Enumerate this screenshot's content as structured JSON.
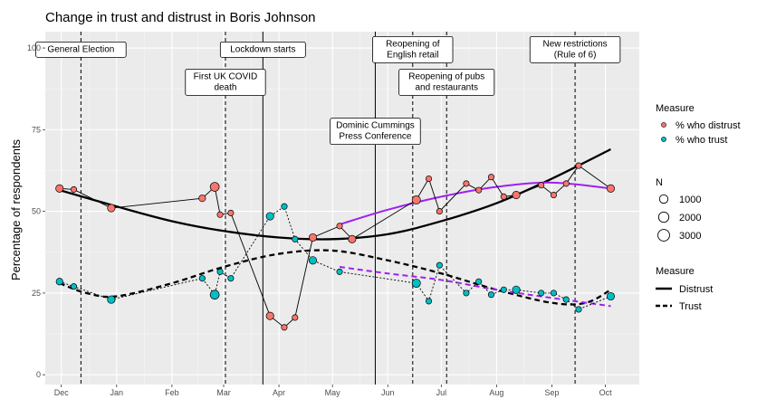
{
  "chart_data": {
    "type": "scatter",
    "title": "Change in trust and distrust in Boris Johnson",
    "xlabel": "",
    "ylabel": "Percentage of respondents",
    "ylim": [
      -3,
      105
    ],
    "xlim": [
      "2019-11-22",
      "2020-10-20"
    ],
    "x_ticks": [
      {
        "date": "2019-12-01",
        "label": "Dec"
      },
      {
        "date": "2020-01-01",
        "label": "Jan"
      },
      {
        "date": "2020-02-01",
        "label": "Feb"
      },
      {
        "date": "2020-03-01",
        "label": "Mar"
      },
      {
        "date": "2020-04-01",
        "label": "Apr"
      },
      {
        "date": "2020-05-01",
        "label": "May"
      },
      {
        "date": "2020-06-01",
        "label": "Jun"
      },
      {
        "date": "2020-07-01",
        "label": "Jul"
      },
      {
        "date": "2020-08-01",
        "label": "Aug"
      },
      {
        "date": "2020-09-01",
        "label": "Sep"
      },
      {
        "date": "2020-10-01",
        "label": "Oct"
      }
    ],
    "y_ticks": [
      0,
      25,
      50,
      75,
      100
    ],
    "grid": true,
    "events": [
      {
        "date": "2019-12-12",
        "label": [
          "General Election"
        ],
        "style": "dashed",
        "label_y": 99.5
      },
      {
        "date": "2020-03-02",
        "label": [
          "First UK COVID",
          "death"
        ],
        "style": "dashed",
        "label_y": 89.5
      },
      {
        "date": "2020-03-23",
        "label": [
          "Lockdown starts"
        ],
        "style": "solid",
        "label_y": 99.5
      },
      {
        "date": "2020-05-25",
        "label": [
          "Dominic Cummings",
          "Press Conference"
        ],
        "style": "solid",
        "label_y": 74.5
      },
      {
        "date": "2020-06-15",
        "label": [
          "Reopening of",
          "English retail"
        ],
        "style": "dashed",
        "label_y": 99.5
      },
      {
        "date": "2020-07-04",
        "label": [
          "Reopening of pubs",
          "and restaurants"
        ],
        "style": "dashed",
        "label_y": 89.5
      },
      {
        "date": "2020-09-14",
        "label": [
          "New restrictions",
          "(Rule of 6)"
        ],
        "style": "dashed",
        "label_y": 99.5
      }
    ],
    "series": [
      {
        "name": "% who distrust",
        "color": "#F8766D",
        "points": [
          {
            "date": "2019-11-30",
            "value": 57,
            "n": 2000
          },
          {
            "date": "2019-12-08",
            "value": 56.7,
            "n": 1000
          },
          {
            "date": "2019-12-29",
            "value": 51,
            "n": 2000
          },
          {
            "date": "2020-02-18",
            "value": 54,
            "n": 1500
          },
          {
            "date": "2020-02-25",
            "value": 57.5,
            "n": 3000
          },
          {
            "date": "2020-02-28",
            "value": 49,
            "n": 1000
          },
          {
            "date": "2020-03-05",
            "value": 49.5,
            "n": 1000
          },
          {
            "date": "2020-03-27",
            "value": 18,
            "n": 2000
          },
          {
            "date": "2020-04-04",
            "value": 14.5,
            "n": 1000
          },
          {
            "date": "2020-04-10",
            "value": 17.5,
            "n": 1000
          },
          {
            "date": "2020-04-20",
            "value": 42,
            "n": 2000
          },
          {
            "date": "2020-05-05",
            "value": 45.5,
            "n": 1000
          },
          {
            "date": "2020-05-12",
            "value": 41.5,
            "n": 2000
          },
          {
            "date": "2020-06-17",
            "value": 53.5,
            "n": 2500
          },
          {
            "date": "2020-06-24",
            "value": 60,
            "n": 1000
          },
          {
            "date": "2020-06-30",
            "value": 50,
            "n": 1000
          },
          {
            "date": "2020-07-15",
            "value": 58.5,
            "n": 1000
          },
          {
            "date": "2020-07-22",
            "value": 56.5,
            "n": 1000
          },
          {
            "date": "2020-07-29",
            "value": 60.5,
            "n": 1000
          },
          {
            "date": "2020-08-05",
            "value": 54.5,
            "n": 1000
          },
          {
            "date": "2020-08-12",
            "value": 55,
            "n": 2000
          },
          {
            "date": "2020-08-26",
            "value": 58,
            "n": 1000
          },
          {
            "date": "2020-09-02",
            "value": 55,
            "n": 1000
          },
          {
            "date": "2020-09-09",
            "value": 58.5,
            "n": 1000
          },
          {
            "date": "2020-09-16",
            "value": 64,
            "n": 1000
          },
          {
            "date": "2020-10-04",
            "value": 57,
            "n": 2000
          }
        ]
      },
      {
        "name": "% who trust",
        "color": "#00BFC4",
        "points": [
          {
            "date": "2019-11-30",
            "value": 28.5,
            "n": 1500
          },
          {
            "date": "2019-12-08",
            "value": 27,
            "n": 1000
          },
          {
            "date": "2019-12-29",
            "value": 23,
            "n": 2000
          },
          {
            "date": "2020-02-18",
            "value": 29.5,
            "n": 1000
          },
          {
            "date": "2020-02-25",
            "value": 24.5,
            "n": 3000
          },
          {
            "date": "2020-02-28",
            "value": 31.5,
            "n": 1000
          },
          {
            "date": "2020-03-05",
            "value": 29.5,
            "n": 1000
          },
          {
            "date": "2020-03-27",
            "value": 48.5,
            "n": 2000
          },
          {
            "date": "2020-04-04",
            "value": 51.5,
            "n": 1000
          },
          {
            "date": "2020-04-10",
            "value": 41.5,
            "n": 1000
          },
          {
            "date": "2020-04-20",
            "value": 35,
            "n": 2000
          },
          {
            "date": "2020-05-05",
            "value": 31.5,
            "n": 1000
          },
          {
            "date": "2020-06-17",
            "value": 28,
            "n": 2500
          },
          {
            "date": "2020-06-24",
            "value": 22.5,
            "n": 1000
          },
          {
            "date": "2020-06-30",
            "value": 33.5,
            "n": 1000
          },
          {
            "date": "2020-07-15",
            "value": 25,
            "n": 1000
          },
          {
            "date": "2020-07-22",
            "value": 28.5,
            "n": 1000
          },
          {
            "date": "2020-07-29",
            "value": 24.5,
            "n": 1000
          },
          {
            "date": "2020-08-05",
            "value": 26,
            "n": 1000
          },
          {
            "date": "2020-08-12",
            "value": 26,
            "n": 2000
          },
          {
            "date": "2020-08-26",
            "value": 25,
            "n": 1000
          },
          {
            "date": "2020-09-02",
            "value": 25,
            "n": 1000
          },
          {
            "date": "2020-09-09",
            "value": 23,
            "n": 1000
          },
          {
            "date": "2020-09-16",
            "value": 20,
            "n": 1000
          },
          {
            "date": "2020-10-04",
            "value": 24,
            "n": 2000
          }
        ]
      }
    ],
    "trends": [
      {
        "name": "Distrust",
        "style": "solid",
        "color": "#000000",
        "points": [
          {
            "date": "2019-11-30",
            "value": 56.5
          },
          {
            "date": "2020-01-01",
            "value": 51.5
          },
          {
            "date": "2020-02-01",
            "value": 47
          },
          {
            "date": "2020-03-01",
            "value": 44
          },
          {
            "date": "2020-04-01",
            "value": 42
          },
          {
            "date": "2020-05-01",
            "value": 41.5
          },
          {
            "date": "2020-06-01",
            "value": 43
          },
          {
            "date": "2020-07-01",
            "value": 47
          },
          {
            "date": "2020-08-01",
            "value": 52.5
          },
          {
            "date": "2020-09-01",
            "value": 60
          },
          {
            "date": "2020-10-04",
            "value": 69
          }
        ]
      },
      {
        "name": "Trust",
        "style": "dashed",
        "color": "#000000",
        "points": [
          {
            "date": "2019-11-30",
            "value": 28
          },
          {
            "date": "2019-12-15",
            "value": 25
          },
          {
            "date": "2020-01-01",
            "value": 24
          },
          {
            "date": "2020-02-01",
            "value": 28
          },
          {
            "date": "2020-03-01",
            "value": 33
          },
          {
            "date": "2020-04-01",
            "value": 37
          },
          {
            "date": "2020-05-01",
            "value": 38
          },
          {
            "date": "2020-06-01",
            "value": 35
          },
          {
            "date": "2020-07-01",
            "value": 31
          },
          {
            "date": "2020-08-01",
            "value": 26
          },
          {
            "date": "2020-09-01",
            "value": 22
          },
          {
            "date": "2020-09-20",
            "value": 22
          },
          {
            "date": "2020-10-04",
            "value": 26
          }
        ]
      },
      {
        "name": "Distrust (post-Cummings)",
        "style": "solid",
        "color": "#A020F0",
        "points": [
          {
            "date": "2020-05-05",
            "value": 46
          },
          {
            "date": "2020-06-01",
            "value": 50.5
          },
          {
            "date": "2020-07-01",
            "value": 54.5
          },
          {
            "date": "2020-08-01",
            "value": 57.5
          },
          {
            "date": "2020-09-01",
            "value": 58.8
          },
          {
            "date": "2020-10-04",
            "value": 57
          }
        ]
      },
      {
        "name": "Trust (post-Cummings)",
        "style": "dashed",
        "color": "#A020F0",
        "points": [
          {
            "date": "2020-05-05",
            "value": 33
          },
          {
            "date": "2020-06-01",
            "value": 31
          },
          {
            "date": "2020-07-01",
            "value": 29
          },
          {
            "date": "2020-08-01",
            "value": 26
          },
          {
            "date": "2020-09-01",
            "value": 23.5
          },
          {
            "date": "2020-10-04",
            "value": 21
          }
        ]
      }
    ],
    "legend": {
      "placement": "right",
      "color_title": "Measure",
      "color_items": [
        "% who distrust",
        "% who trust"
      ],
      "size_title": "N",
      "size_items": [
        1000,
        2000,
        3000
      ],
      "line_title": "Measure",
      "line_items": [
        {
          "label": "Distrust",
          "style": "solid"
        },
        {
          "label": "Trust",
          "style": "dashed"
        }
      ]
    }
  }
}
